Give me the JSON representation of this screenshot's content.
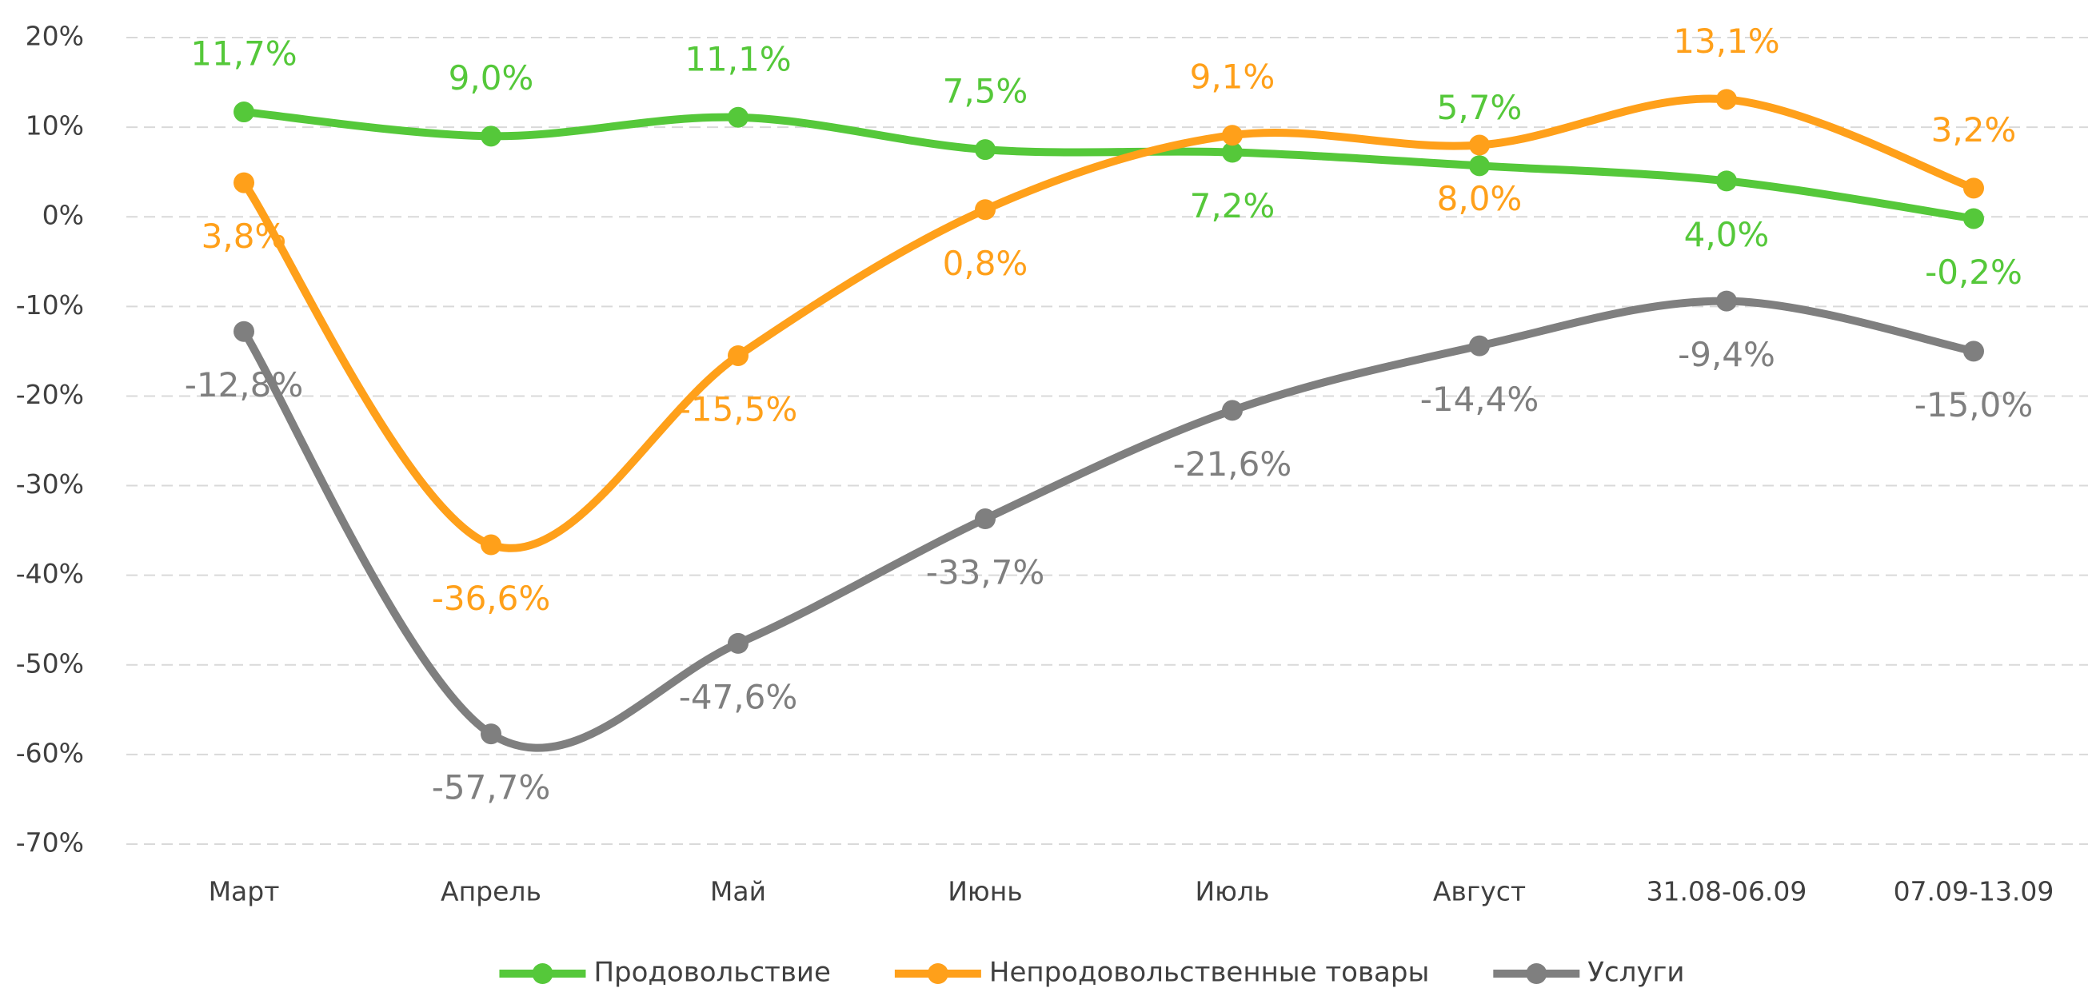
{
  "chart_data": {
    "type": "line",
    "categories": [
      "Март",
      "Апрель",
      "Май",
      "Июнь",
      "Июль",
      "Август",
      "31.08-06.09",
      "07.09-13.09"
    ],
    "series": [
      {
        "name": "Продовольствие",
        "color": "#55c83a",
        "values": [
          11.7,
          9.0,
          11.1,
          7.5,
          7.2,
          5.7,
          4.0,
          -0.2
        ],
        "value_labels": [
          "11,7%",
          "9,0%",
          "11,1%",
          "7,5%",
          "7,2%",
          "5,7%",
          "4,0%",
          "-0,2%"
        ]
      },
      {
        "name": "Непродовольственные товары",
        "color": "#ffa01a",
        "values": [
          3.8,
          -36.6,
          -15.5,
          0.8,
          9.1,
          8.0,
          13.1,
          3.2
        ],
        "value_labels": [
          "3,8%",
          "-36,6%",
          "-15,5%",
          "0,8%",
          "9,1%",
          "8,0%",
          "13,1%",
          "3,2%"
        ]
      },
      {
        "name": "Услуги",
        "color": "#7f7f7f",
        "values": [
          -12.8,
          -57.7,
          -47.6,
          -33.7,
          -21.6,
          -14.4,
          -9.4,
          -15.0
        ],
        "value_labels": [
          "-12,8%",
          "-57,7%",
          "-47,6%",
          "-33,7%",
          "-21,6%",
          "-14,4%",
          "-9,4%",
          "-15,0%"
        ]
      }
    ],
    "ylim": [
      -70,
      20
    ],
    "yticks": [
      {
        "value": 20,
        "label": "20%"
      },
      {
        "value": 10,
        "label": "10%"
      },
      {
        "value": 0,
        "label": "0%"
      },
      {
        "value": -10,
        "label": "-10%"
      },
      {
        "value": -20,
        "label": "-20%"
      },
      {
        "value": -30,
        "label": "-30%"
      },
      {
        "value": -40,
        "label": "-40%"
      },
      {
        "value": -50,
        "label": "-50%"
      },
      {
        "value": -60,
        "label": "-60%"
      },
      {
        "value": -70,
        "label": "-70%"
      }
    ],
    "grid": true,
    "legend": "bottom"
  }
}
